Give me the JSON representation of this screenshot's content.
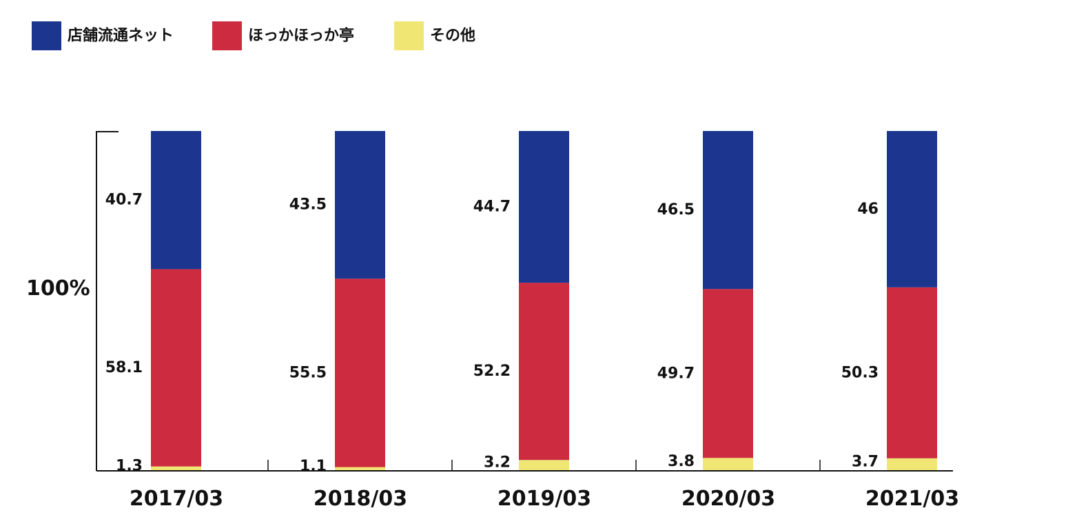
{
  "chart_data": {
    "type": "bar",
    "stacked": true,
    "normalized_percent": true,
    "ylabel": "100%",
    "ylim": [
      0,
      100
    ],
    "categories": [
      "2017/03",
      "2018/03",
      "2019/03",
      "2020/03",
      "2021/03"
    ],
    "series": [
      {
        "name": "その他",
        "color": "#f0e674",
        "values": [
          1.3,
          1.1,
          3.2,
          3.8,
          3.7
        ]
      },
      {
        "name": "ほっかほっか亭",
        "color": "#cc2b40",
        "values": [
          58.1,
          55.5,
          52.2,
          49.7,
          50.3
        ]
      },
      {
        "name": "店舗流通ネット",
        "color": "#1c358e",
        "values": [
          40.7,
          43.5,
          44.7,
          46.5,
          46
        ]
      }
    ],
    "legend_order": [
      "店舗流通ネット",
      "ほっかほっか亭",
      "その他"
    ],
    "legend_position": "top-left",
    "grid": false
  }
}
